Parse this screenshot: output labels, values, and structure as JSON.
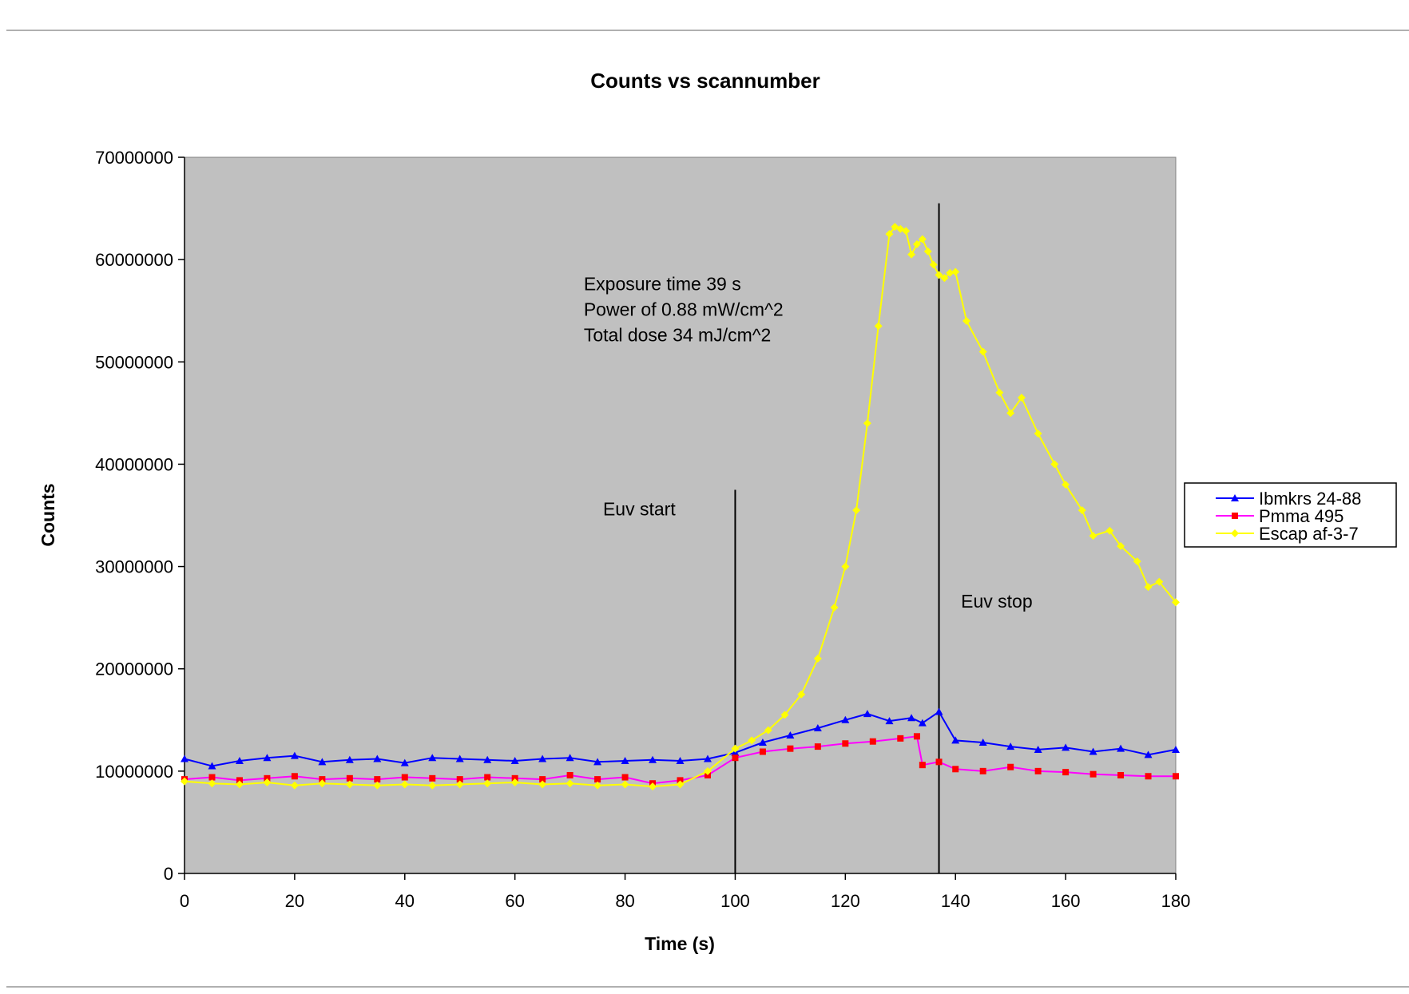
{
  "chart_data": {
    "type": "line",
    "title": "Counts vs scannumber",
    "xlabel": "Time (s)",
    "ylabel": "Counts",
    "xlim": [
      0,
      180
    ],
    "ylim": [
      0,
      70000000
    ],
    "x_ticks": [
      "0",
      "20",
      "40",
      "60",
      "80",
      "100",
      "120",
      "140",
      "160",
      "180"
    ],
    "y_ticks": [
      "0",
      "10000000",
      "20000000",
      "30000000",
      "40000000",
      "50000000",
      "60000000",
      "70000000"
    ],
    "grid": false,
    "legend_position": "right",
    "plot_background": "#c0c0c0",
    "series": [
      {
        "name": "Ibmkrs 24-88",
        "color": "#0000ff",
        "marker": "triangle",
        "x": [
          0,
          5,
          10,
          15,
          20,
          25,
          30,
          35,
          40,
          45,
          50,
          55,
          60,
          65,
          70,
          75,
          80,
          85,
          90,
          95,
          100,
          105,
          110,
          115,
          120,
          124,
          128,
          132,
          134,
          137,
          140,
          145,
          150,
          155,
          160,
          165,
          170,
          175,
          180
        ],
        "y": [
          11200000,
          10500000,
          11000000,
          11300000,
          11500000,
          10900000,
          11100000,
          11200000,
          10800000,
          11300000,
          11200000,
          11100000,
          11000000,
          11200000,
          11300000,
          10900000,
          11000000,
          11100000,
          11000000,
          11200000,
          11800000,
          12800000,
          13500000,
          14200000,
          15000000,
          15600000,
          14900000,
          15200000,
          14700000,
          15800000,
          13000000,
          12800000,
          12400000,
          12100000,
          12300000,
          11900000,
          12200000,
          11600000,
          12100000
        ]
      },
      {
        "name": "Pmma 495",
        "color": "#ff00ff",
        "marker_color": "#ff0000",
        "marker": "square",
        "x": [
          0,
          5,
          10,
          15,
          20,
          25,
          30,
          35,
          40,
          45,
          50,
          55,
          60,
          65,
          70,
          75,
          80,
          85,
          90,
          95,
          100,
          105,
          110,
          115,
          120,
          125,
          130,
          133,
          134,
          137,
          140,
          145,
          150,
          155,
          160,
          165,
          170,
          175,
          180
        ],
        "y": [
          9200000,
          9400000,
          9100000,
          9300000,
          9500000,
          9200000,
          9300000,
          9200000,
          9400000,
          9300000,
          9200000,
          9400000,
          9300000,
          9200000,
          9600000,
          9200000,
          9400000,
          8800000,
          9100000,
          9600000,
          11300000,
          11900000,
          12200000,
          12400000,
          12700000,
          12900000,
          13200000,
          13400000,
          10600000,
          10900000,
          10200000,
          10000000,
          10400000,
          10000000,
          9900000,
          9700000,
          9600000,
          9500000,
          9500000
        ]
      },
      {
        "name": "Escap af-3-7",
        "color": "#ffff00",
        "marker": "diamond",
        "x": [
          0,
          5,
          10,
          15,
          20,
          25,
          30,
          35,
          40,
          45,
          50,
          55,
          60,
          65,
          70,
          75,
          80,
          85,
          90,
          95,
          100,
          103,
          106,
          109,
          112,
          115,
          118,
          120,
          122,
          124,
          126,
          128,
          129,
          130,
          131,
          132,
          133,
          134,
          135,
          136,
          137,
          138,
          139,
          140,
          142,
          145,
          148,
          150,
          152,
          155,
          158,
          160,
          163,
          165,
          168,
          170,
          173,
          175,
          177,
          180
        ],
        "y": [
          9000000,
          8800000,
          8700000,
          8900000,
          8600000,
          8800000,
          8700000,
          8600000,
          8700000,
          8600000,
          8700000,
          8800000,
          8900000,
          8700000,
          8800000,
          8600000,
          8700000,
          8500000,
          8700000,
          10000000,
          12200000,
          13000000,
          14000000,
          15500000,
          17500000,
          21000000,
          26000000,
          30000000,
          35500000,
          44000000,
          53500000,
          62500000,
          63200000,
          63000000,
          62800000,
          60500000,
          61500000,
          62000000,
          60800000,
          59500000,
          58500000,
          58200000,
          58700000,
          58800000,
          54000000,
          51000000,
          47000000,
          45000000,
          46500000,
          43000000,
          40000000,
          38000000,
          35500000,
          33000000,
          33500000,
          32000000,
          30500000,
          28000000,
          28500000,
          26500000
        ]
      }
    ],
    "annotations": [
      {
        "text": "Exposure time 39 s",
        "x": 72.5,
        "y": 57000000
      },
      {
        "text": "Power of 0.88 mW/cm^2",
        "x": 72.5,
        "y": 54500000
      },
      {
        "text": "Total dose 34 mJ/cm^2",
        "x": 72.5,
        "y": 52000000
      },
      {
        "text": "Euv start",
        "x": 76,
        "y": 35000000
      },
      {
        "text": "Euv stop",
        "x": 141,
        "y": 26000000
      }
    ],
    "vertical_lines": [
      {
        "x": 100,
        "y_top": 37500000
      },
      {
        "x": 137,
        "y_top": 65500000
      }
    ]
  }
}
